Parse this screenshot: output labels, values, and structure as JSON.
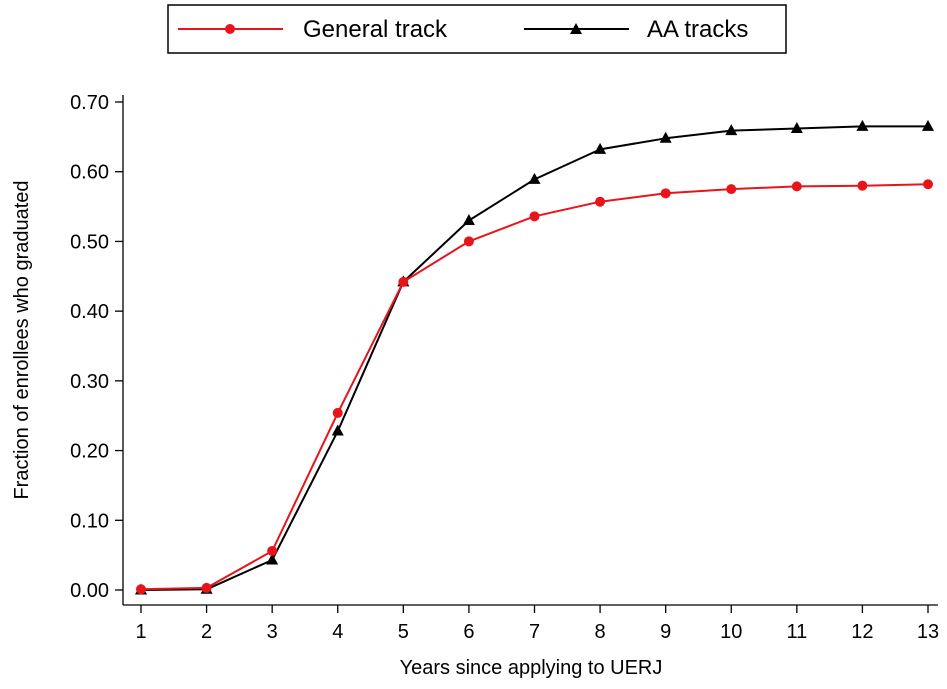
{
  "chart_data": {
    "type": "line",
    "xlabel": "Years since applying to UERJ",
    "ylabel": "Fraction of enrollees who graduated",
    "x": [
      1,
      2,
      3,
      4,
      5,
      6,
      7,
      8,
      9,
      10,
      11,
      12,
      13
    ],
    "xlim": [
      1,
      13
    ],
    "ylim": [
      0,
      0.7
    ],
    "x_ticks": [
      "1",
      "2",
      "3",
      "4",
      "5",
      "6",
      "7",
      "8",
      "9",
      "10",
      "11",
      "12",
      "13"
    ],
    "y_ticks": [
      "0.00",
      "0.10",
      "0.20",
      "0.30",
      "0.40",
      "0.50",
      "0.60",
      "0.70"
    ],
    "y_tick_values": [
      0,
      0.1,
      0.2,
      0.3,
      0.4,
      0.5,
      0.6,
      0.7
    ],
    "grid": false,
    "legend_position": "top-center",
    "series": [
      {
        "name": "General track",
        "color": "#e8141b",
        "marker": "circle",
        "values": [
          0.001,
          0.003,
          0.056,
          0.254,
          0.442,
          0.5,
          0.536,
          0.557,
          0.569,
          0.575,
          0.579,
          0.58,
          0.582
        ]
      },
      {
        "name": "AA tracks",
        "color": "#000000",
        "marker": "triangle",
        "values": [
          0.0,
          0.001,
          0.043,
          0.228,
          0.442,
          0.53,
          0.589,
          0.632,
          0.648,
          0.659,
          0.662,
          0.665,
          0.665
        ]
      }
    ]
  }
}
